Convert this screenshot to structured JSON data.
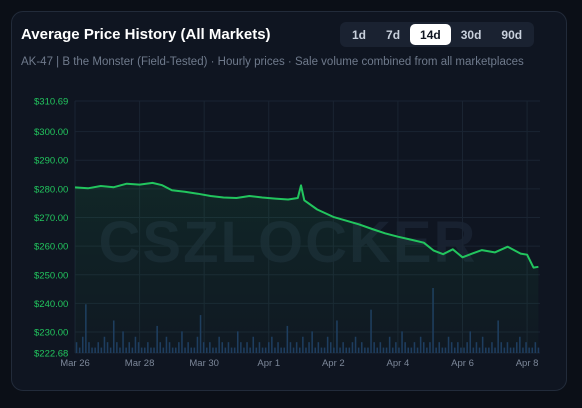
{
  "header": {
    "title": "Average Price History (All Markets)",
    "subtitle": "AK-47 | B the Monster (Field-Tested) · Hourly prices · Sale volume combined from all marketplaces"
  },
  "ranges": [
    {
      "label": "1d",
      "active": false
    },
    {
      "label": "7d",
      "active": false
    },
    {
      "label": "14d",
      "active": true
    },
    {
      "label": "30d",
      "active": false
    },
    {
      "label": "90d",
      "active": false
    }
  ],
  "watermark": "CSZLOCKER",
  "colors": {
    "line": "#22c55e",
    "axis_text": "#22c55e",
    "volume": "#1e3a5f",
    "grid": "#1a2432"
  },
  "chart_data": {
    "type": "line",
    "title": "Average Price History (All Markets)",
    "ylim": [
      222.68,
      310.69
    ],
    "yticks": [
      "$310.69",
      "$300.00",
      "$290.00",
      "$280.00",
      "$270.00",
      "$260.00",
      "$250.00",
      "$240.00",
      "$230.00",
      "$222.68"
    ],
    "ytick_values": [
      310.69,
      300,
      290,
      280,
      270,
      260,
      250,
      240,
      230,
      222.68
    ],
    "xlim": [
      0,
      14.4
    ],
    "xticks": [
      "Mar 26",
      "Mar 28",
      "Mar 30",
      "Apr 1",
      "Apr 2",
      "Apr 4",
      "Apr 6",
      "Apr 8"
    ],
    "xtick_positions": [
      0,
      2,
      4,
      6,
      8,
      10,
      12,
      14
    ],
    "grid": true,
    "series": [
      {
        "values_x": [
          0,
          0.4,
          0.8,
          1.2,
          1.6,
          2.0,
          2.4,
          2.7,
          3.0,
          3.4,
          3.8,
          4.2,
          4.6,
          5.0,
          5.4,
          5.8,
          6.2,
          6.6,
          6.9,
          7.0,
          7.1,
          7.5,
          8.0,
          8.4,
          8.8,
          9.2,
          9.6,
          10.0,
          10.4,
          10.8,
          11.1,
          11.4,
          11.7,
          12.0,
          12.3,
          12.6,
          13.0,
          13.4,
          13.8,
          14.0,
          14.2,
          14.35
        ],
        "values_y": [
          280.5,
          280.2,
          281.0,
          280.6,
          281.8,
          281.5,
          282.1,
          281.3,
          279.5,
          279.0,
          278.3,
          277.5,
          277.0,
          276.8,
          277.5,
          277.0,
          276.6,
          276.3,
          276.8,
          281.2,
          276.0,
          272.8,
          270.2,
          268.9,
          267.6,
          266.0,
          264.5,
          263.3,
          262.3,
          261.2,
          258.5,
          257.2,
          258.9,
          256.1,
          257.4,
          258.6,
          257.8,
          259.8,
          257.4,
          257.0,
          252.5,
          252.8
        ]
      }
    ],
    "volume": [
      2,
      1,
      3,
      9,
      2,
      1,
      1,
      2,
      1,
      3,
      2,
      1,
      6,
      2,
      1,
      4,
      1,
      2,
      1,
      3,
      2,
      1,
      1,
      2,
      1,
      1,
      5,
      2,
      1,
      3,
      2,
      1,
      1,
      2,
      4,
      1,
      2,
      1,
      1,
      3,
      7,
      2,
      1,
      2,
      1,
      1,
      3,
      2,
      1,
      2,
      1,
      1,
      4,
      2,
      1,
      2,
      1,
      3,
      1,
      2,
      1,
      1,
      2,
      3,
      1,
      2,
      1,
      1,
      5,
      2,
      1,
      2,
      1,
      3,
      1,
      2,
      4,
      1,
      2,
      1,
      1,
      3,
      2,
      1,
      6,
      1,
      2,
      1,
      1,
      2,
      3,
      1,
      2,
      1,
      1,
      8,
      2,
      1,
      2,
      1,
      1,
      3,
      1,
      2,
      1,
      4,
      2,
      1,
      1,
      2,
      1,
      3,
      2,
      1,
      2,
      12,
      1,
      2,
      1,
      1,
      3,
      2,
      1,
      2,
      1,
      1,
      2,
      4,
      1,
      2,
      1,
      3,
      1,
      1,
      2,
      1,
      6,
      2,
      1,
      2,
      1,
      1,
      2,
      3,
      1,
      2,
      1,
      1,
      2,
      1
    ]
  }
}
